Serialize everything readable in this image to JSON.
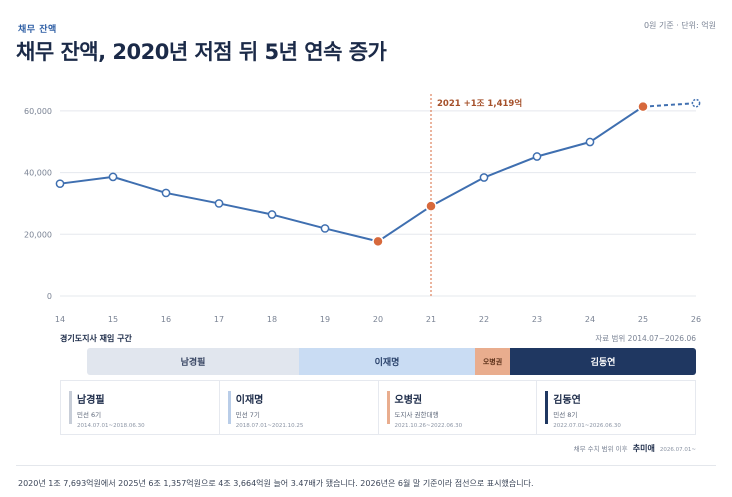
{
  "header": {
    "eyebrow": "채무 잔액",
    "unit_note": "0원 기준 · 단위: 억원",
    "title": "채무 잔액, 2020년 저점 뒤 5년 연속 증가"
  },
  "chart_data": {
    "type": "line",
    "x": [
      14,
      15,
      16,
      17,
      18,
      19,
      20,
      21,
      22,
      23,
      24,
      25,
      26
    ],
    "x_tick_labels": [
      "14",
      "15",
      "16",
      "17",
      "18",
      "19",
      "20",
      "21",
      "22",
      "23",
      "24",
      "25",
      "26"
    ],
    "y_ticks": [
      0,
      20000,
      40000,
      60000
    ],
    "y_tick_labels": [
      "0",
      "20,000",
      "40,000",
      "60,000"
    ],
    "ylim": [
      0,
      70000
    ],
    "series": [
      {
        "values": [
          36400,
          38600,
          33400,
          30000,
          26400,
          21900,
          17693,
          29112,
          38400,
          45200,
          49900,
          61357,
          62500
        ],
        "projected_from_index": 11,
        "highlight_indices": [
          6,
          7,
          11
        ]
      }
    ],
    "annotation": {
      "x": 21,
      "text": "2021 +1조 1,419억"
    },
    "grid": true,
    "colors": {
      "line": "#3f6fb0",
      "highlight": "#d7693c",
      "grid": "#e5e8ee",
      "annotation": "#a5502a"
    }
  },
  "terms": {
    "title": "경기도지사 재임 구간",
    "range_label": "자료 범위 2014.07~2026.06",
    "segments": [
      {
        "label": "남경필"
      },
      {
        "label": "이재명"
      },
      {
        "label": "오병권"
      },
      {
        "label": "김동연"
      }
    ]
  },
  "cards": [
    {
      "name": "남경필",
      "sub": "민선 6기",
      "dates": "2014.07.01~2018.06.30",
      "color": "#c8ced8"
    },
    {
      "name": "이재명",
      "sub": "민선 7기",
      "dates": "2018.07.01~2021.10.25",
      "color": "#b9cde8"
    },
    {
      "name": "오병권",
      "sub": "도지사 권한대행",
      "dates": "2021.10.26~2022.06.30",
      "color": "#e9ad8e"
    },
    {
      "name": "김동연",
      "sub": "민선 8기",
      "dates": "2022.07.01~2026.06.30",
      "color": "#1f3761"
    }
  ],
  "footnote": {
    "prefix": "채무 수치 범위 이후",
    "name": "추미애",
    "date": "2026.07.01~"
  },
  "summary": "2020년 1조 7,693억원에서 2025년 6조 1,357억원으로 4조 3,664억원 늘어 3.47배가 됐습니다. 2026년은 6월 말 기준이라 점선으로 표시했습니다."
}
